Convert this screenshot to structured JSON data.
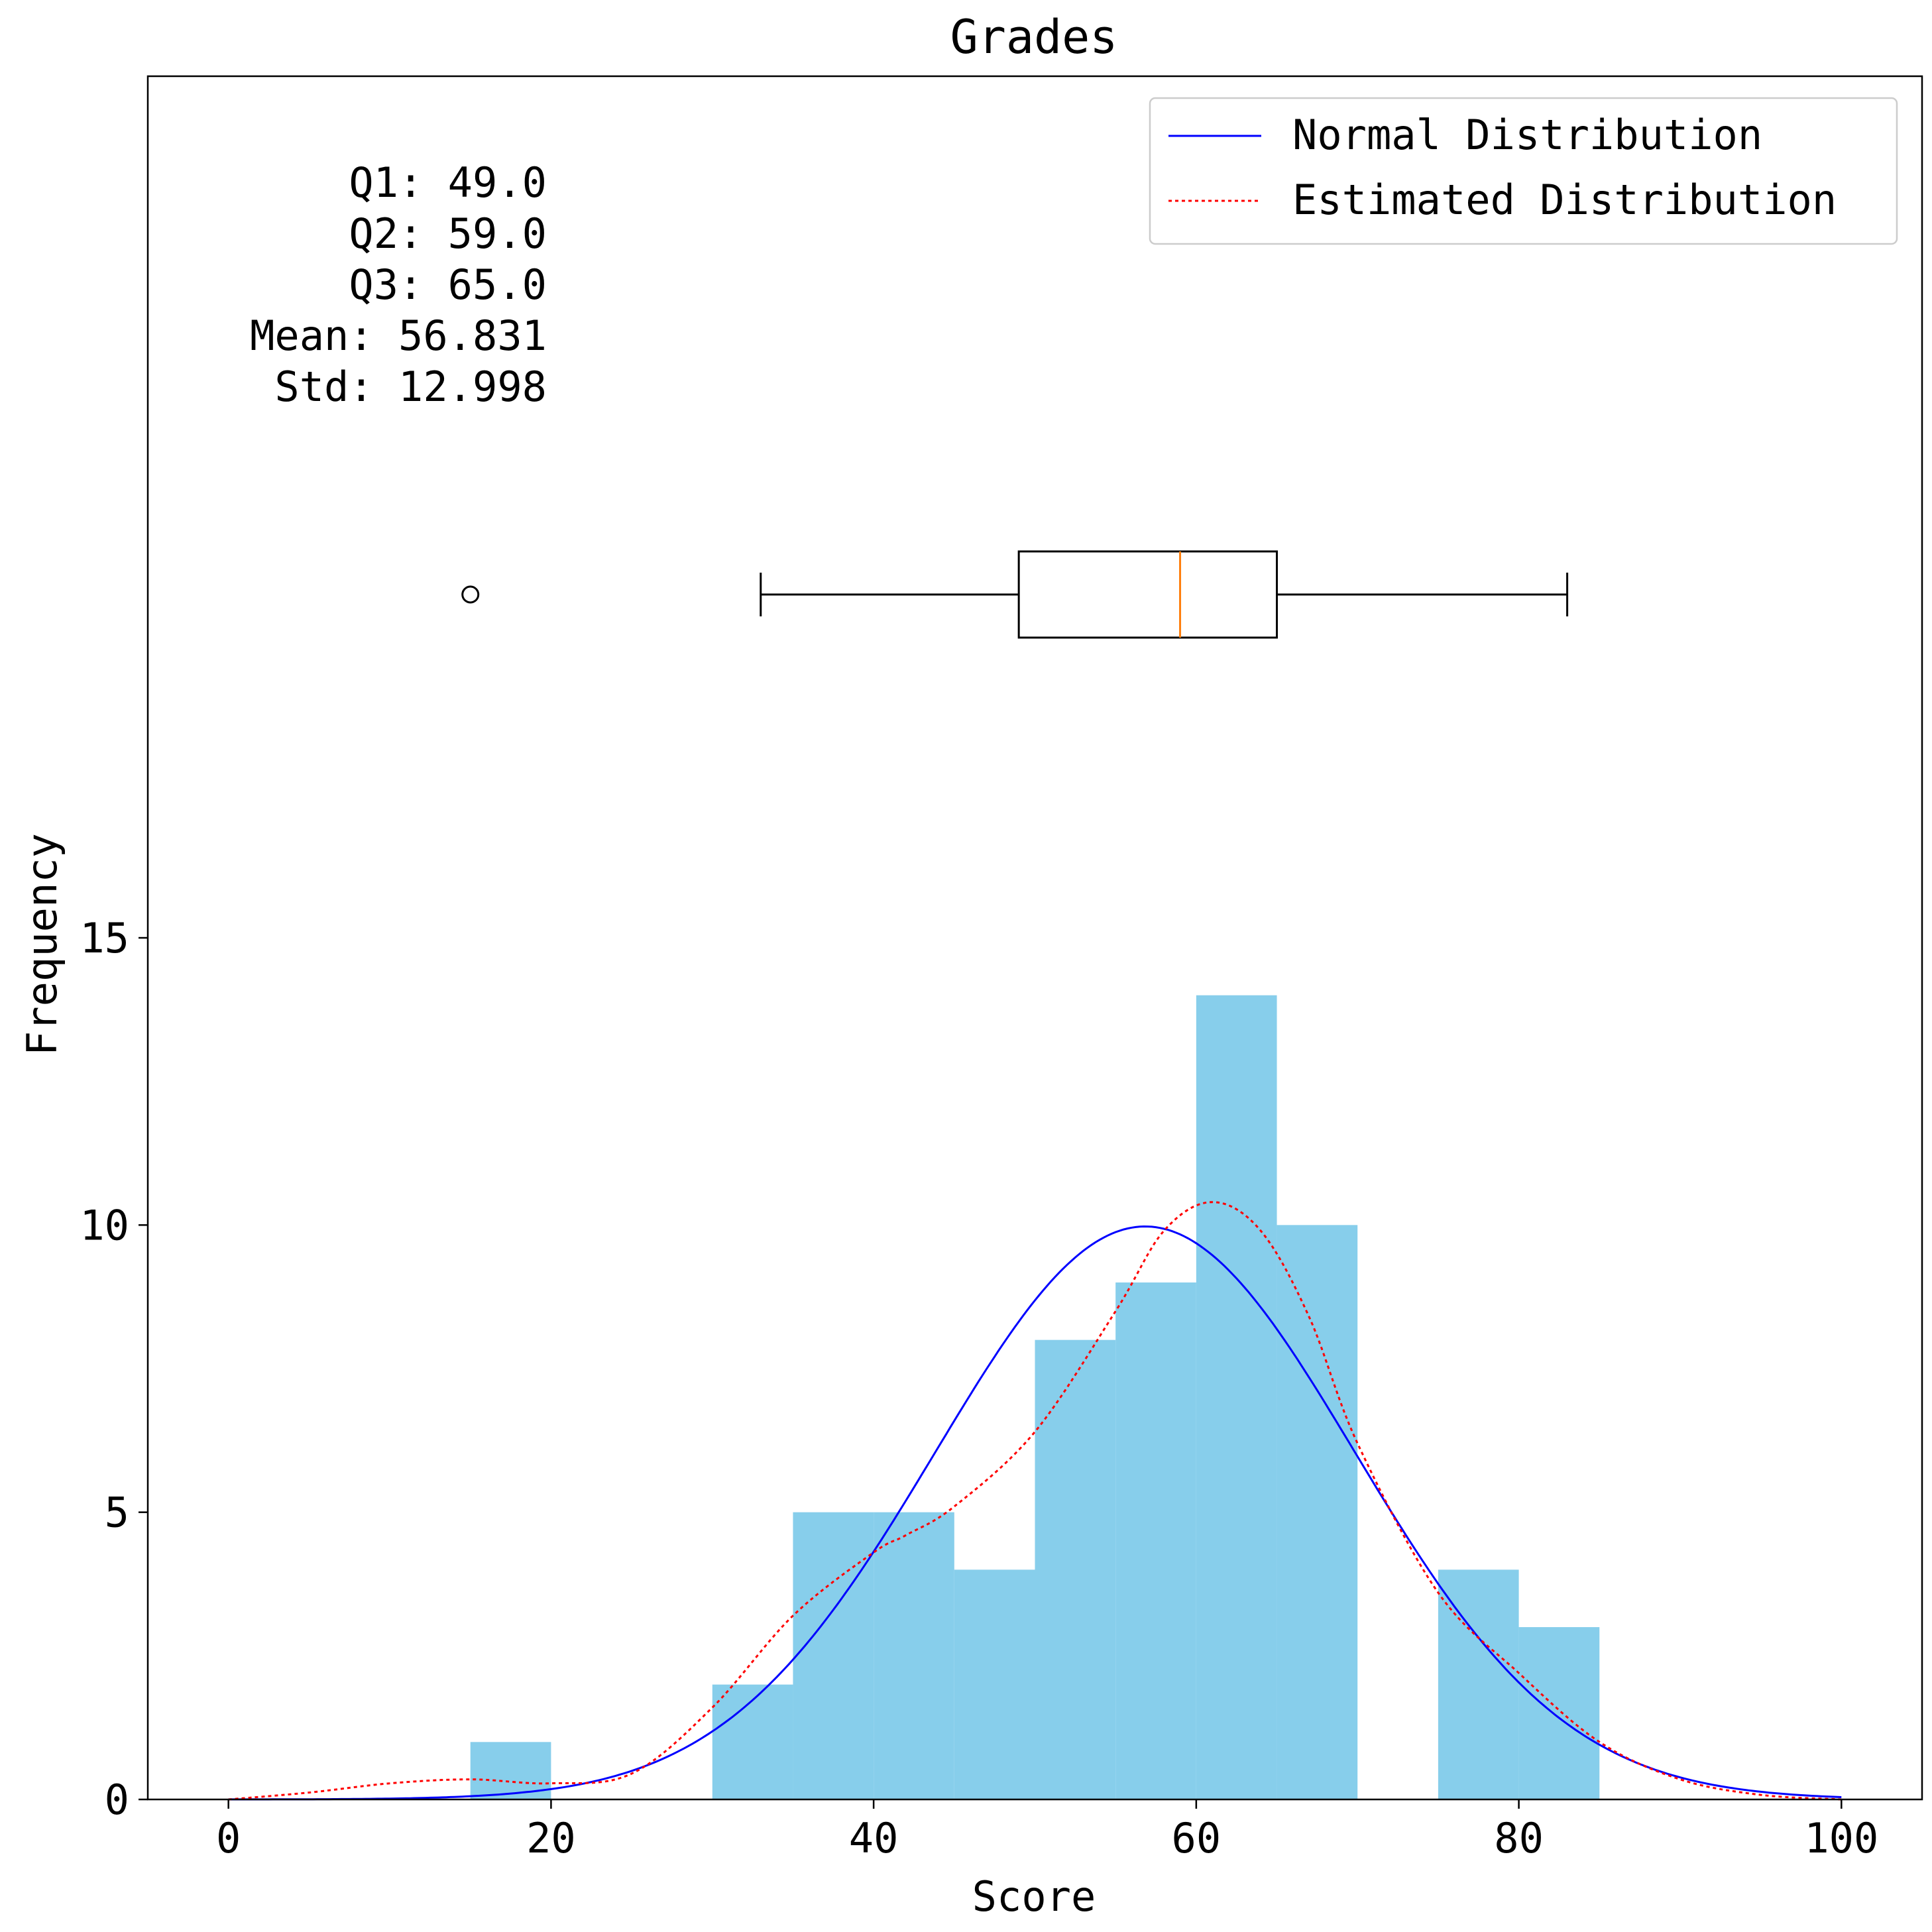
{
  "chart_data": {
    "type": "histogram",
    "title": "Grades",
    "xlabel": "Score",
    "ylabel": "Frequency",
    "xlim": [
      -5,
      105
    ],
    "ylim": [
      0,
      30
    ],
    "x_ticks": [
      0,
      20,
      40,
      60,
      80,
      100
    ],
    "y_ticks": [
      0,
      5,
      10,
      15
    ],
    "grid": false,
    "legend_position": "top-right",
    "histogram": {
      "bin_edges": [
        15,
        20,
        25,
        30,
        35,
        40,
        45,
        50,
        55,
        60,
        65,
        70,
        75,
        80,
        85
      ],
      "counts": [
        1,
        0,
        0,
        2,
        5,
        5,
        4,
        8,
        9,
        14,
        10,
        0,
        4,
        3
      ],
      "color": "#87ceeb"
    },
    "series": [
      {
        "name": "Normal Distribution",
        "style": "solid",
        "color": "#0000ff",
        "mean": 56.831,
        "std": 12.998,
        "x": [
          0,
          100
        ]
      },
      {
        "name": "Estimated Distribution",
        "style": "dotted",
        "color": "#ff0000",
        "x": [
          0,
          5,
          10,
          15,
          20,
          25,
          30,
          35,
          40,
          42,
          45,
          50,
          55,
          58,
          61,
          64,
          67,
          70,
          75,
          80,
          85,
          90,
          95,
          100
        ],
        "y": [
          0,
          0.12,
          0.28,
          0.35,
          0.28,
          0.45,
          1.6,
          3.2,
          4.3,
          4.6,
          5.1,
          6.4,
          8.5,
          9.9,
          10.4,
          9.9,
          8.4,
          6.2,
          3.6,
          2.2,
          1.0,
          0.35,
          0.08,
          0
        ]
      }
    ],
    "boxplot": {
      "min": 33,
      "q1": 49.0,
      "median": 59.0,
      "q3": 65.0,
      "max": 83,
      "outliers": [
        15
      ],
      "median_color": "#ff7f0e"
    },
    "stats_lines": [
      "Q1: 49.0",
      "Q2: 59.0",
      "Q3: 65.0",
      "Mean: 56.831",
      "Std: 12.998"
    ]
  }
}
